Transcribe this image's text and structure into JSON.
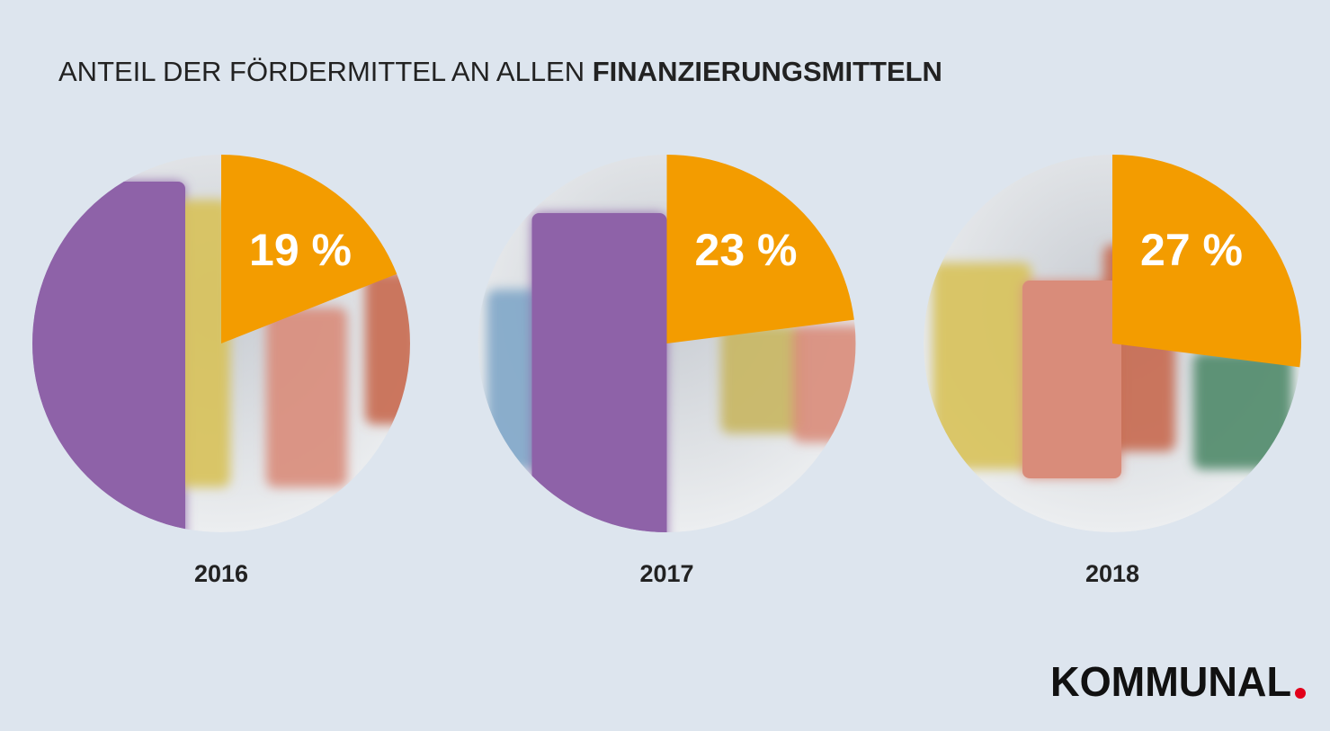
{
  "title": {
    "regular": "ANTEIL DER FÖRDERMITTEL AN ALLEN",
    "bold": "FINANZIERUNGSMITTELN"
  },
  "logo": "KOMMUNAL",
  "chart_data": [
    {
      "type": "pie",
      "title": "2016",
      "values": [
        19
      ],
      "value_labels": [
        "19 %"
      ],
      "color": "#f39c00"
    },
    {
      "type": "pie",
      "title": "2017",
      "values": [
        23
      ],
      "value_labels": [
        "23 %"
      ],
      "color": "#f39c00"
    },
    {
      "type": "pie",
      "title": "2018",
      "values": [
        27
      ],
      "value_labels": [
        "27 %"
      ],
      "color": "#f39c00"
    }
  ]
}
